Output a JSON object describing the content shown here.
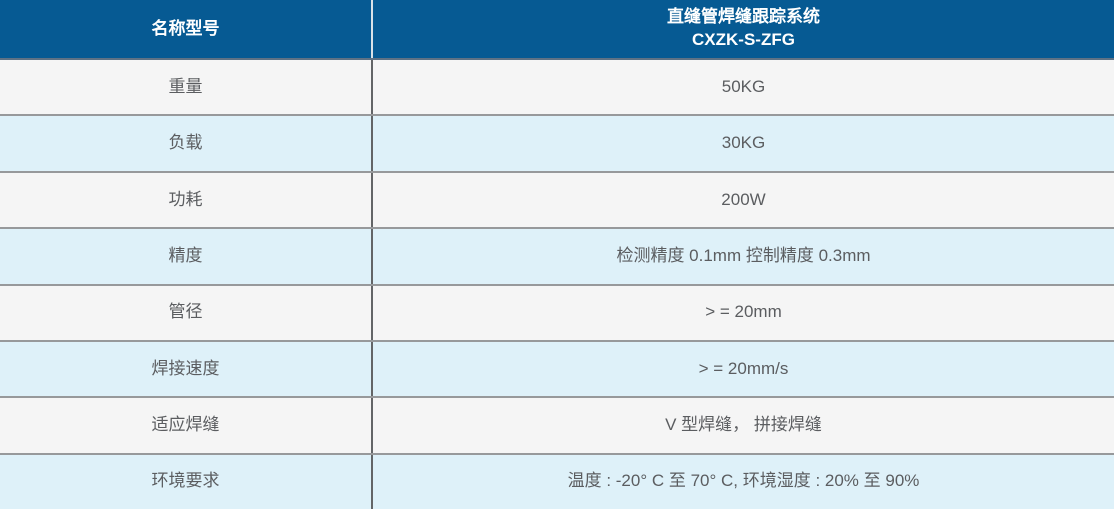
{
  "table": {
    "header": {
      "label_column_title": "名称型号",
      "product_name": "直缝管焊缝跟踪系统",
      "product_model": "CXZK-S-ZFG"
    },
    "rows": [
      {
        "label": "重量",
        "value": "50KG"
      },
      {
        "label": "负载",
        "value": "30KG"
      },
      {
        "label": "功耗",
        "value": "200W"
      },
      {
        "label": "精度",
        "value": "检测精度 0.1mm 控制精度 0.3mm"
      },
      {
        "label": "管径",
        "value": "> = 20mm"
      },
      {
        "label": "焊接速度",
        "value": "> = 20mm/s"
      },
      {
        "label": "适应焊缝",
        "value": "V 型焊缝， 拼接焊缝"
      },
      {
        "label": "环境要求",
        "value": "温度 : -20° C 至 70° C, 环境湿度 : 20% 至 90%"
      }
    ],
    "colors": {
      "header_background": "#065a93",
      "header_text": "#ffffff",
      "row_gray": "#f5f5f5",
      "row_blue": "#def1f9",
      "body_text": "#5b5d60",
      "separator": "#97999b",
      "column_divider": "#636567"
    }
  }
}
